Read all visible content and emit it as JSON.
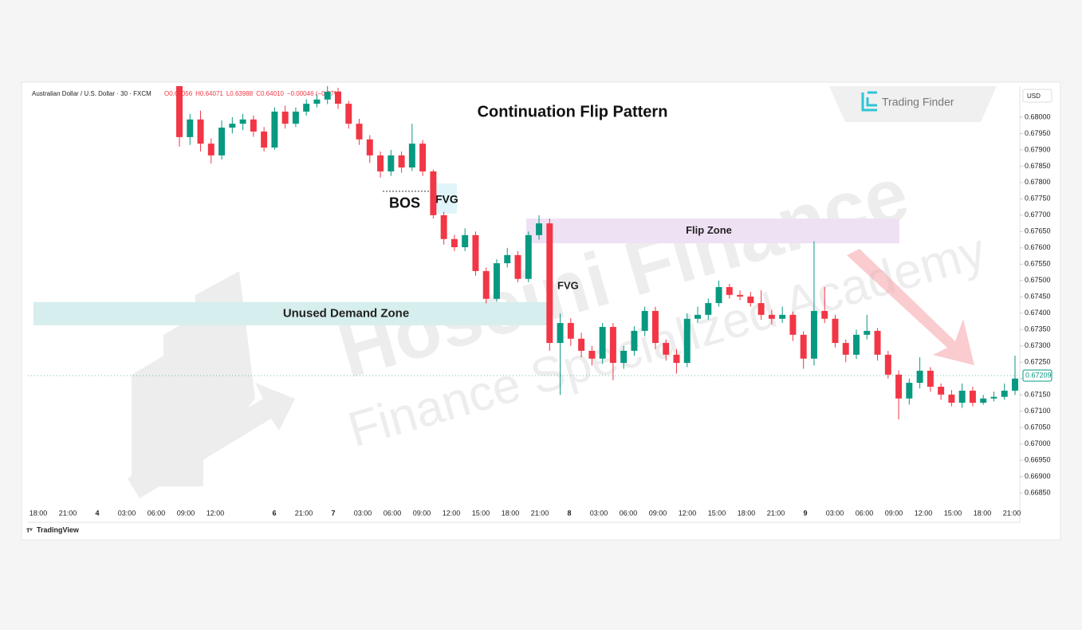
{
  "chart_data": {
    "type": "candlestick",
    "title": "Continuation Flip Pattern",
    "symbol": "Australian Dollar / U.S. Dollar · 30 · FXCM",
    "ohlc_legend": [
      "O0.64056",
      "H0.64071",
      "L0.63988",
      "C0.64010",
      "−0.00046 (−0.07%)"
    ],
    "currency": "USD",
    "brand": "Trading Finder",
    "watermark": [
      "Hoseini Finance",
      "Finance Specialized Academy"
    ],
    "footer": "TradingView",
    "up_color": "#089981",
    "down_color": "#f23645",
    "last_price": 0.67209,
    "categories": [
      "18:00",
      "21:00",
      "4",
      "03:00",
      "06:00",
      "09:00",
      "12:00",
      null,
      "6",
      "21:00",
      "7",
      "03:00",
      "06:00",
      "09:00",
      "12:00",
      "15:00",
      "18:00",
      "21:00",
      "8",
      "03:00",
      "06:00",
      "09:00",
      "12:00",
      "15:00",
      "18:00",
      "21:00",
      "9",
      "03:00",
      "06:00",
      "09:00",
      "12:00",
      "15:00",
      "18:00",
      "21:00"
    ],
    "open": [
      0.68095,
      0.67939,
      0.67993,
      0.67919,
      0.67883,
      0.67968,
      0.6798,
      0.67993,
      0.67956,
      0.67907,
      0.68017,
      0.6798,
      0.68017,
      0.68041,
      0.68054,
      0.68078,
      0.68041,
      0.6798,
      0.67932,
      0.67883,
      0.67834,
      0.67883,
      0.67846,
      0.67919,
      0.67834,
      0.677,
      0.67627,
      0.67602,
      0.67639,
      0.67529,
      0.67444,
      0.67553,
      0.67578,
      0.67505,
      0.67639,
      0.67675,
      0.67309,
      0.6737,
      0.67322,
      0.67285,
      0.67261,
      0.67358,
      0.67248,
      0.67285,
      0.67346,
      0.67407,
      0.67309,
      0.67273,
      0.67248,
      0.67383,
      0.67395,
      0.67431,
      0.6748,
      0.67456,
      0.67451,
      0.67431,
      0.67395,
      0.67383,
      0.67395,
      0.67334,
      0.67261,
      0.67407,
      0.67383,
      0.67309,
      0.67273,
      0.67334,
      0.67346,
      0.67273,
      0.67212,
      0.67139,
      0.67187,
      0.67224,
      0.67175,
      0.67151,
      0.67126,
      0.67163,
      0.67126,
      0.67139,
      0.67144,
      0.67163
    ],
    "high": [
      0.68095,
      0.6801,
      0.6802,
      0.67935,
      0.6799,
      0.68,
      0.6801,
      0.68005,
      0.6797,
      0.6803,
      0.68035,
      0.6803,
      0.68055,
      0.6807,
      0.68095,
      0.6809,
      0.6805,
      0.67995,
      0.67945,
      0.67895,
      0.679,
      0.67895,
      0.6798,
      0.6793,
      0.6784,
      0.6771,
      0.6764,
      0.6766,
      0.6765,
      0.6754,
      0.67565,
      0.676,
      0.6759,
      0.6765,
      0.677,
      0.6769,
      0.674,
      0.67385,
      0.6734,
      0.673,
      0.6737,
      0.6737,
      0.673,
      0.6736,
      0.6742,
      0.6742,
      0.6732,
      0.6729,
      0.674,
      0.6742,
      0.67445,
      0.675,
      0.6749,
      0.6747,
      0.67465,
      0.6747,
      0.6741,
      0.6742,
      0.67405,
      0.67345,
      0.6762,
      0.6748,
      0.67395,
      0.6732,
      0.6735,
      0.67395,
      0.67355,
      0.67285,
      0.67225,
      0.672,
      0.67265,
      0.67235,
      0.67185,
      0.67165,
      0.67185,
      0.67175,
      0.6715,
      0.6716,
      0.67185,
      0.6727
    ],
    "low": [
      0.6791,
      0.67915,
      0.67895,
      0.67858,
      0.6787,
      0.6795,
      0.6796,
      0.6794,
      0.67895,
      0.679,
      0.67965,
      0.6797,
      0.68005,
      0.6803,
      0.6804,
      0.68025,
      0.67965,
      0.67915,
      0.6786,
      0.67815,
      0.6782,
      0.6783,
      0.67835,
      0.6782,
      0.6769,
      0.6761,
      0.6759,
      0.6759,
      0.67515,
      0.6743,
      0.67435,
      0.6754,
      0.67495,
      0.67495,
      0.67625,
      0.67285,
      0.6715,
      0.673,
      0.67265,
      0.6724,
      0.67245,
      0.67195,
      0.6723,
      0.6727,
      0.6733,
      0.6729,
      0.67255,
      0.67215,
      0.67235,
      0.6737,
      0.6738,
      0.6742,
      0.67445,
      0.6744,
      0.6742,
      0.6738,
      0.67365,
      0.6737,
      0.67315,
      0.6723,
      0.6724,
      0.6737,
      0.67295,
      0.6725,
      0.6726,
      0.6732,
      0.67255,
      0.672,
      0.67075,
      0.6712,
      0.6717,
      0.6716,
      0.67135,
      0.67115,
      0.6711,
      0.67115,
      0.6712,
      0.6713,
      0.67135,
      0.6715
    ],
    "close": [
      0.67939,
      0.67993,
      0.67919,
      0.67883,
      0.67968,
      0.6798,
      0.67993,
      0.67956,
      0.67907,
      0.68017,
      0.6798,
      0.68017,
      0.68041,
      0.68054,
      0.68078,
      0.68041,
      0.6798,
      0.67932,
      0.67883,
      0.67834,
      0.67883,
      0.67846,
      0.67919,
      0.67834,
      0.677,
      0.67627,
      0.67602,
      0.67639,
      0.67529,
      0.67444,
      0.67553,
      0.67578,
      0.67505,
      0.67639,
      0.67675,
      0.67309,
      0.6737,
      0.67322,
      0.67285,
      0.67261,
      0.67358,
      0.67248,
      0.67285,
      0.67346,
      0.67407,
      0.67309,
      0.67273,
      0.67248,
      0.67383,
      0.67395,
      0.67431,
      0.6748,
      0.67456,
      0.67451,
      0.67431,
      0.67395,
      0.67383,
      0.67395,
      0.67334,
      0.67261,
      0.67407,
      0.67383,
      0.67309,
      0.67273,
      0.67334,
      0.67346,
      0.67273,
      0.67212,
      0.67139,
      0.67187,
      0.67224,
      0.67175,
      0.67151,
      0.67126,
      0.67163,
      0.67126,
      0.67139,
      0.67144,
      0.67163,
      0.672
    ],
    "zones": [
      {
        "name": "Unused Demand Zone",
        "top": 0.67434,
        "bottom": 0.67363,
        "color": "#d6eeed"
      },
      {
        "name": "Flip Zone",
        "top": 0.6769,
        "bottom": 0.67614,
        "color": "#efe1f4"
      },
      {
        "name": "FVG",
        "top": 0.67797,
        "bottom": 0.67705,
        "color": "#dff5f9"
      }
    ],
    "bos": {
      "label": "BOS",
      "price": 0.67773
    },
    "fvg_label": "FVG",
    "ylim": [
      0.6676,
      0.68095
    ],
    "yticks": [
      {
        "value": 0.6685,
        "label": "0.66850"
      },
      {
        "value": 0.669,
        "label": "0.66900"
      },
      {
        "value": 0.6695,
        "label": "0.66950"
      },
      {
        "value": 0.67,
        "label": "0.67000"
      },
      {
        "value": 0.6705,
        "label": "0.67050"
      },
      {
        "value": 0.671,
        "label": "0.67100"
      },
      {
        "value": 0.6715,
        "label": "0.67150"
      },
      {
        "value": 0.672,
        "label": "0.67200"
      },
      {
        "value": 0.6725,
        "label": "0.67250"
      },
      {
        "value": 0.673,
        "label": "0.67300"
      },
      {
        "value": 0.6735,
        "label": "0.67350"
      },
      {
        "value": 0.674,
        "label": "0.67400"
      },
      {
        "value": 0.6745,
        "label": "0.67450"
      },
      {
        "value": 0.675,
        "label": "0.67500"
      },
      {
        "value": 0.6755,
        "label": "0.67550"
      },
      {
        "value": 0.676,
        "label": "0.67600"
      },
      {
        "value": 0.6765,
        "label": "0.67650"
      },
      {
        "value": 0.677,
        "label": "0.67700"
      },
      {
        "value": 0.6775,
        "label": "0.67750"
      },
      {
        "value": 0.678,
        "label": "0.67800"
      },
      {
        "value": 0.6785,
        "label": "0.67850"
      },
      {
        "value": 0.679,
        "label": "0.67900"
      },
      {
        "value": 0.6795,
        "label": "0.67950"
      },
      {
        "value": 0.68,
        "label": "0.68000"
      }
    ]
  }
}
